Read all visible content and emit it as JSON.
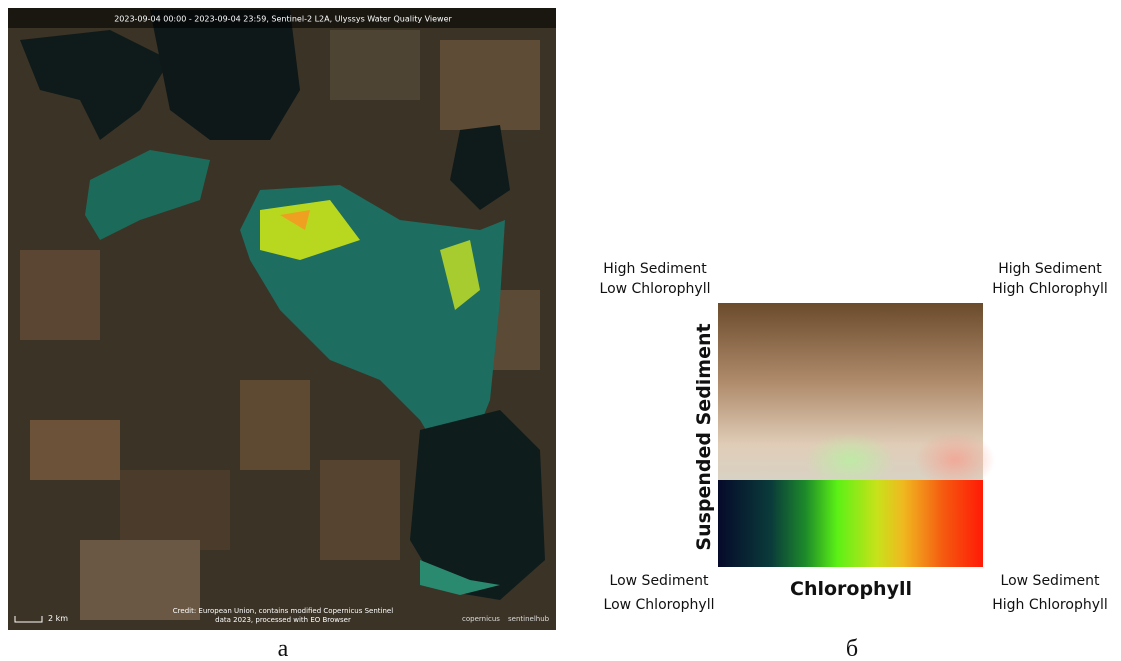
{
  "panel_a": {
    "header": "2023-09-04 00:00 - 2023-09-04 23:59, Sentinel-2 L2A, Ulyssys Water Quality Viewer",
    "scale": "2 km",
    "credit": [
      "Credit: European Union, contains modified Copernicus Sentinel",
      "data 2023, processed with EO Browser"
    ],
    "logos": [
      "copernicus",
      "sentinelhub"
    ],
    "label": "а"
  },
  "panel_b": {
    "top_left": [
      "High Sediment",
      "Low Chlorophyll"
    ],
    "top_right": [
      "High Sediment",
      "High Chlorophyll"
    ],
    "bottom_left": [
      "Low Sediment",
      "Low Chlorophyll"
    ],
    "bottom_right": [
      "Low Sediment",
      "High Chlorophyll"
    ],
    "y_title": "Suspended Sediment",
    "x_title": "Chlorophyll",
    "label": "б"
  }
}
